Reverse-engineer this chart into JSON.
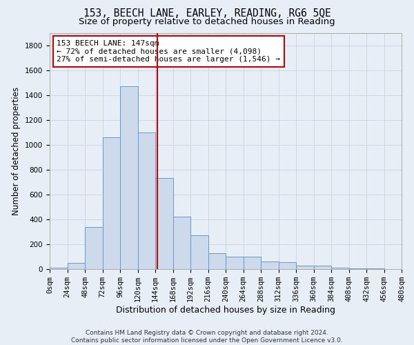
{
  "title1": "153, BEECH LANE, EARLEY, READING, RG6 5QE",
  "title2": "Size of property relative to detached houses in Reading",
  "xlabel": "Distribution of detached houses by size in Reading",
  "ylabel": "Number of detached properties",
  "bin_edges": [
    0,
    24,
    48,
    72,
    96,
    120,
    144,
    168,
    192,
    216,
    240,
    264,
    288,
    312,
    336,
    360,
    384,
    408,
    432,
    456,
    480
  ],
  "bar_heights": [
    10,
    50,
    340,
    1060,
    1470,
    1100,
    730,
    420,
    270,
    130,
    100,
    100,
    60,
    55,
    30,
    30,
    10,
    5,
    3,
    2
  ],
  "bar_color": "#ccdaeb",
  "bar_edge_color": "#6699cc",
  "property_size": 147,
  "vline_color": "#cc0000",
  "annotation_line1": "153 BEECH LANE: 147sqm",
  "annotation_line2": "← 72% of detached houses are smaller (4,098)",
  "annotation_line3": "27% of semi-detached houses are larger (1,546) →",
  "annotation_box_color": "#ffffff",
  "annotation_box_edge_color": "#cc0000",
  "grid_color": "#c8d4e4",
  "background_color": "#e8eef6",
  "plot_bg_color": "#e8eef6",
  "footer_text": "Contains HM Land Registry data © Crown copyright and database right 2024.\nContains public sector information licensed under the Open Government Licence v3.0.",
  "ylim": [
    0,
    1900
  ],
  "yticks": [
    0,
    200,
    400,
    600,
    800,
    1000,
    1200,
    1400,
    1600,
    1800
  ],
  "title1_fontsize": 10.5,
  "title2_fontsize": 9.5,
  "xlabel_fontsize": 9,
  "ylabel_fontsize": 8.5,
  "tick_fontsize": 7.5,
  "footer_fontsize": 6.5,
  "ann_fontsize": 8
}
